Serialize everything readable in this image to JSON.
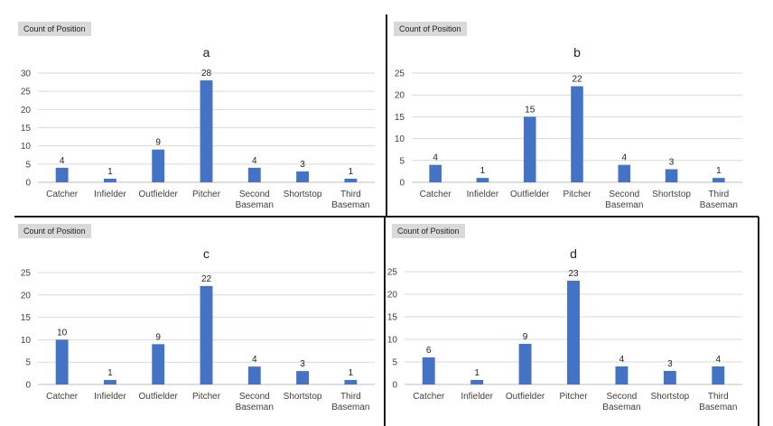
{
  "field_button_label": "Count of Position",
  "colors": {
    "bar": "#4472c4",
    "grid": "#d9d9d9",
    "axis": "#bfbfbf",
    "text": "#404040"
  },
  "chart_data": [
    {
      "type": "bar",
      "title": "a",
      "categories": [
        "Catcher",
        "Infielder",
        "Outfielder",
        "Pitcher",
        "Second Baseman",
        "Shortstop",
        "Third Baseman"
      ],
      "values": [
        4,
        1,
        9,
        28,
        4,
        3,
        1
      ],
      "ylim": [
        0,
        30
      ],
      "yticks": [
        0,
        5,
        10,
        15,
        20,
        25,
        30
      ],
      "xlabel": "",
      "ylabel": "",
      "grid": true
    },
    {
      "type": "bar",
      "title": "b",
      "categories": [
        "Catcher",
        "Infielder",
        "Outfielder",
        "Pitcher",
        "Second Baseman",
        "Shortstop",
        "Third Baseman"
      ],
      "values": [
        4,
        1,
        15,
        22,
        4,
        3,
        1
      ],
      "ylim": [
        0,
        25
      ],
      "yticks": [
        0,
        5,
        10,
        15,
        20,
        25
      ],
      "xlabel": "",
      "ylabel": "",
      "grid": true
    },
    {
      "type": "bar",
      "title": "c",
      "categories": [
        "Catcher",
        "Infielder",
        "Outfielder",
        "Pitcher",
        "Second Baseman",
        "Shortstop",
        "Third Baseman"
      ],
      "values": [
        10,
        1,
        9,
        22,
        4,
        3,
        1
      ],
      "ylim": [
        0,
        25
      ],
      "yticks": [
        0,
        5,
        10,
        15,
        20,
        25
      ],
      "xlabel": "",
      "ylabel": "",
      "grid": true
    },
    {
      "type": "bar",
      "title": "d",
      "categories": [
        "Catcher",
        "Infielder",
        "Outfielder",
        "Pitcher",
        "Second Baseman",
        "Shortstop",
        "Third Baseman"
      ],
      "values": [
        6,
        1,
        9,
        23,
        4,
        3,
        4
      ],
      "ylim": [
        0,
        25
      ],
      "yticks": [
        0,
        5,
        10,
        15,
        20,
        25
      ],
      "xlabel": "",
      "ylabel": "",
      "grid": true
    }
  ]
}
